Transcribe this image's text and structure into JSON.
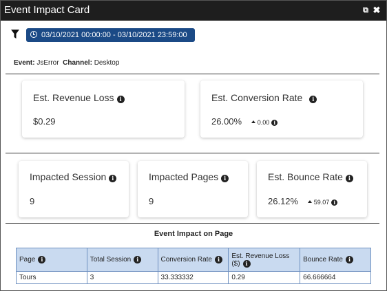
{
  "window": {
    "title": "Event Impact Card",
    "popout_icon": "popout-icon",
    "close_icon": "close-icon"
  },
  "filter": {
    "icon": "filter-icon",
    "date_icon": "clock-icon",
    "date_range": "03/10/2021 00:00:00 - 03/10/2021 23:59:00"
  },
  "meta": {
    "event_label": "Event:",
    "event_value": "JsError",
    "channel_label": "Channel:",
    "channel_value": "Desktop"
  },
  "cards_row1": [
    {
      "label": "Est. Revenue Loss",
      "value": "$0.29",
      "delta": ""
    },
    {
      "label": "Est. Conversion Rate",
      "value": "26.00%",
      "delta": "0.00"
    }
  ],
  "cards_row2": [
    {
      "label": "Impacted Session",
      "value": "9",
      "delta": ""
    },
    {
      "label": "Impacted Pages",
      "value": "9",
      "delta": ""
    },
    {
      "label": "Est. Bounce Rate",
      "value": "26.12%",
      "delta": "59.07"
    }
  ],
  "table": {
    "title": "Event Impact on Page",
    "columns": [
      "Page",
      "Total Session",
      "Conversion Rate",
      "Est. Revenue Loss ($)",
      "Bounce Rate"
    ],
    "rows": [
      [
        "Tours",
        "3",
        "33.333332",
        "0.29",
        "66.666664"
      ]
    ]
  },
  "colors": {
    "titlebar": "#1e1e1e",
    "date_pill": "#1b4a86",
    "table_header": "#c9daf0",
    "table_border": "#6d8fbf"
  }
}
